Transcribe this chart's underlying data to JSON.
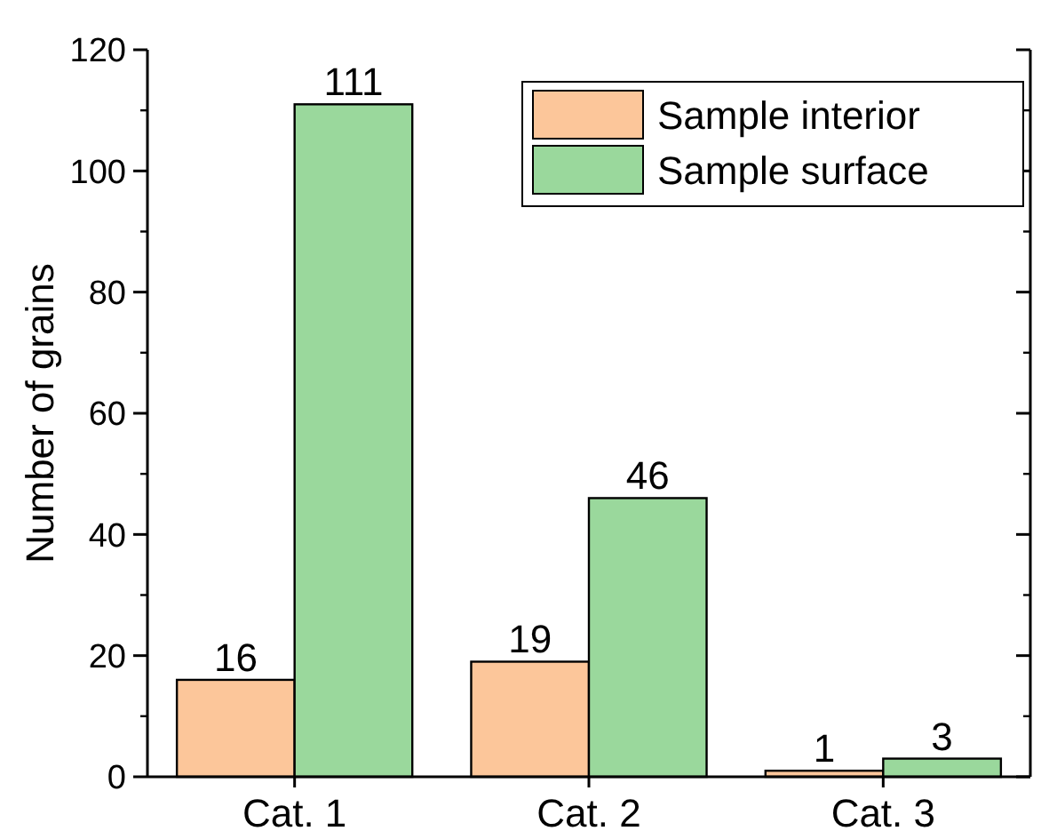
{
  "chart_data": {
    "type": "bar",
    "ylabel": "Number of grains",
    "categories": [
      "Cat. 1",
      "Cat. 2",
      "Cat. 3"
    ],
    "series": [
      {
        "name": "Sample interior",
        "color": "#fcc69a",
        "values": [
          16,
          19,
          1
        ]
      },
      {
        "name": "Sample surface",
        "color": "#9ad89c",
        "values": [
          111,
          46,
          3
        ]
      }
    ],
    "ylim": [
      0,
      120
    ],
    "yticks": [
      0,
      20,
      40,
      60,
      80,
      100,
      120
    ],
    "data_labels": true,
    "legend": "top right",
    "grid": false
  }
}
